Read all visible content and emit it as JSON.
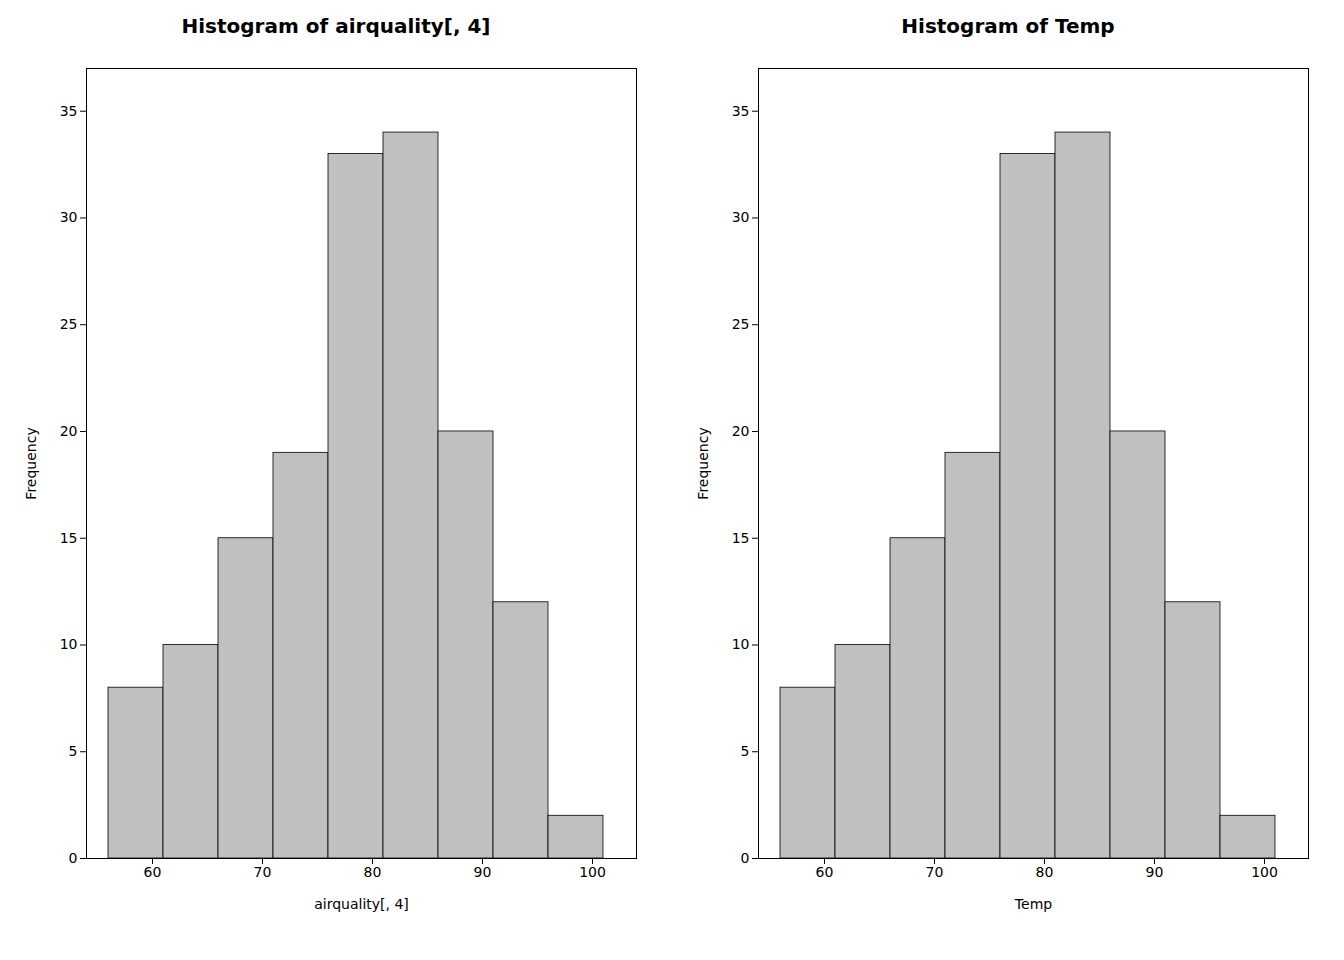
{
  "chart_data": [
    {
      "type": "histogram",
      "title": "Histogram of airquality[, 4]",
      "xlabel": "airquality[, 4]",
      "ylabel": "Frequency",
      "bins": [
        56,
        61,
        66,
        71,
        76,
        81,
        86,
        91,
        96,
        101
      ],
      "values": [
        8,
        10,
        15,
        19,
        33,
        34,
        20,
        12,
        2
      ],
      "color": "#c0c0c0",
      "xlim": [
        54,
        104
      ],
      "ylim": [
        0,
        37
      ],
      "xticks": [
        60,
        70,
        80,
        90,
        100
      ],
      "yticks": [
        0,
        5,
        10,
        15,
        20,
        25,
        30,
        35
      ],
      "grid": false
    },
    {
      "type": "histogram",
      "title": "Histogram of Temp",
      "xlabel": "Temp",
      "ylabel": "Frequency",
      "bins": [
        56,
        61,
        66,
        71,
        76,
        81,
        86,
        91,
        96,
        101
      ],
      "values": [
        8,
        10,
        15,
        19,
        33,
        34,
        20,
        12,
        2
      ],
      "color": "#c0c0c0",
      "xlim": [
        54,
        104
      ],
      "ylim": [
        0,
        37
      ],
      "xticks": [
        60,
        70,
        80,
        90,
        100
      ],
      "yticks": [
        0,
        5,
        10,
        15,
        20,
        25,
        30,
        35
      ],
      "grid": false
    }
  ]
}
